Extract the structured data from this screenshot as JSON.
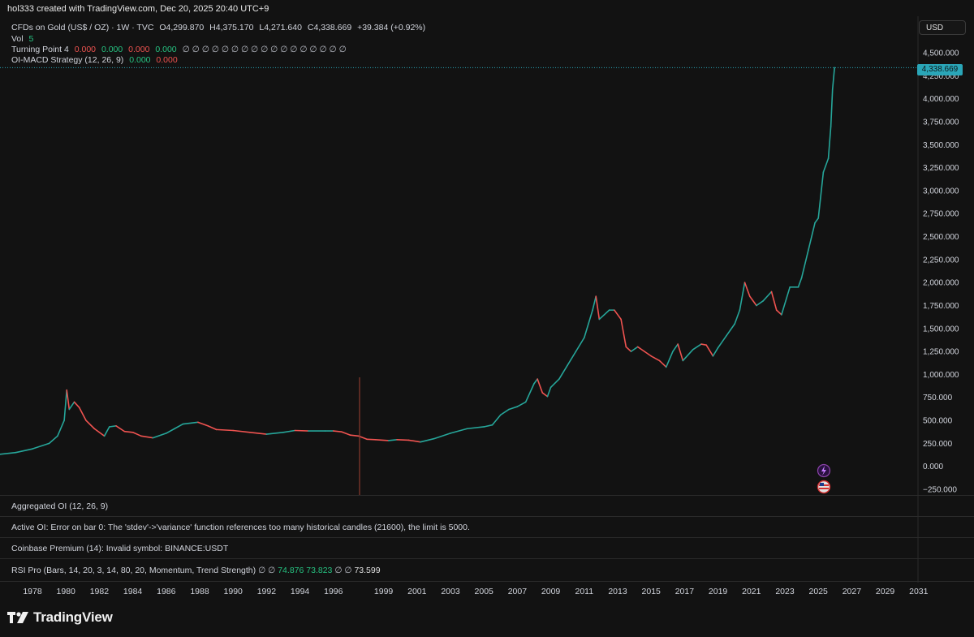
{
  "attribution": "hol333 created with TradingView.com, Dec 20, 2025 20:40 UTC+9",
  "legend": {
    "symbol": "CFDs on Gold (US$ / OZ) · 1W · TVC",
    "open": "O4,299.870",
    "high": "H4,375.170",
    "low": "L4,271.640",
    "close": "C4,338.669",
    "change": "+39.384 (+0.92%)",
    "vol_label": "Vol",
    "vol_value": "5",
    "tp_label": "Turning Point 4",
    "tp_values": [
      "0.000",
      "0.000",
      "0.000",
      "0.000"
    ],
    "null_glyphs": "∅ ∅ ∅ ∅ ∅ ∅ ∅ ∅ ∅ ∅ ∅ ∅ ∅ ∅ ∅ ∅ ∅",
    "oimacd_label": "OI-MACD Strategy (12, 26, 9)",
    "oimacd_values": [
      "0.000",
      "0.000"
    ]
  },
  "currency": "USD",
  "last_price_tag": "4,338.669",
  "panes": {
    "aggregated_oi": "Aggregated OI (12, 26, 9)",
    "active_oi": "Active OI: Error on bar 0: The 'stdev'->'variance' function references too many historical candles (21600), the limit is 5000.",
    "coinbase": "Coinbase Premium (14): Invalid symbol: BINANCE:USDT",
    "rsi_label": "RSI Pro (Bars, 14, 20, 3, 14, 80, 20, Momentum, Trend Strength)",
    "rsi_nulls_1": "∅ ∅",
    "rsi_v1": "74.876",
    "rsi_v2": "73.823",
    "rsi_nulls_2": "∅ ∅",
    "rsi_v3": "73.599"
  },
  "brand": "TradingView",
  "colors": {
    "up": "#26a69a",
    "down": "#ef5350",
    "accent": "#2aa6b8",
    "green": "#26c281"
  },
  "chart_data": {
    "type": "line",
    "title": "CFDs on Gold (US$ / OZ)",
    "xlabel": "",
    "ylabel": "",
    "x_range": [
      1976,
      2032
    ],
    "ylim": [
      -300,
      4600
    ],
    "y_ticks": [
      -250,
      0,
      250,
      500,
      750,
      1000,
      1250,
      1500,
      1750,
      2000,
      2250,
      2500,
      2750,
      3000,
      3250,
      3500,
      3750,
      4000,
      4250,
      4500
    ],
    "y_tick_labels": [
      "−250.000",
      "0.000",
      "250.000",
      "500.000",
      "750.000",
      "1,000.000",
      "1,250.000",
      "1,500.000",
      "1,750.000",
      "2,000.000",
      "2,250.000",
      "2,500.000",
      "2,750.000",
      "3,000.000",
      "3,250.000",
      "3,500.000",
      "3,750.000",
      "4,000.000",
      "4,250.000",
      "4,500.000"
    ],
    "x_ticks": [
      1978,
      1980,
      1982,
      1984,
      1986,
      1988,
      1990,
      1992,
      1994,
      1996,
      1999,
      2001,
      2003,
      2005,
      2007,
      2009,
      2011,
      2013,
      2015,
      2017,
      2019,
      2021,
      2023,
      2025,
      2027,
      2029,
      2031
    ],
    "x_tick_labels": [
      "1978",
      "1980",
      "1982",
      "1984",
      "1986",
      "1988",
      "1990",
      "1992",
      "1994",
      "1996",
      "1999",
      "2001",
      "2003",
      "2005",
      "2007",
      "2009",
      "2011",
      "2013",
      "2015",
      "2017",
      "2019",
      "2021",
      "2023",
      "2025",
      "2027",
      "2029",
      "2031"
    ],
    "grid": false,
    "series": [
      {
        "x": [
          1976.0,
          1977.0,
          1978.0,
          1979.0,
          1979.5,
          1979.9,
          1980.05,
          1980.2,
          1980.5,
          1980.8,
          1981.2,
          1981.7,
          1982.3,
          1982.6,
          1983.0,
          1983.5,
          1984.0,
          1984.5,
          1985.2,
          1986.0,
          1986.5,
          1987.0,
          1987.9,
          1988.5,
          1989.0,
          1990.0,
          1991.0,
          1992.0,
          1993.0,
          1993.7,
          1994.5,
          1995.5,
          1996.0,
          1996.5,
          1997.0,
          1997.5,
          1998.0,
          1998.5,
          1999.3,
          1999.8,
          2000.5,
          2001.2,
          2002.0,
          2003.0,
          2004.0,
          2005.0,
          2005.5,
          2006.0,
          2006.5,
          2007.0,
          2007.5,
          2008.0,
          2008.2,
          2008.5,
          2008.8,
          2009.0,
          2009.5,
          2010.0,
          2010.5,
          2011.0,
          2011.5,
          2011.7,
          2011.9,
          2012.2,
          2012.5,
          2012.8,
          2013.2,
          2013.5,
          2013.8,
          2014.2,
          2014.6,
          2015.0,
          2015.5,
          2015.9,
          2016.3,
          2016.6,
          2016.9,
          2017.5,
          2018.0,
          2018.3,
          2018.7,
          2019.0,
          2019.5,
          2020.0,
          2020.3,
          2020.6,
          2020.9,
          2021.3,
          2021.7,
          2022.2,
          2022.5,
          2022.8,
          2023.3,
          2023.8,
          2024.0,
          2024.4,
          2024.8,
          2025.0,
          2025.3,
          2025.6,
          2025.75,
          2025.85,
          2025.97
        ],
        "values": [
          130,
          150,
          190,
          250,
          330,
          500,
          830,
          620,
          700,
          640,
          500,
          410,
          330,
          430,
          440,
          380,
          370,
          330,
          310,
          360,
          410,
          460,
          480,
          440,
          400,
          390,
          370,
          350,
          370,
          390,
          385,
          385,
          385,
          375,
          340,
          330,
          295,
          290,
          280,
          290,
          285,
          265,
          300,
          360,
          410,
          430,
          450,
          560,
          620,
          650,
          700,
          900,
          950,
          800,
          760,
          860,
          950,
          1100,
          1250,
          1400,
          1700,
          1850,
          1600,
          1650,
          1700,
          1700,
          1600,
          1300,
          1250,
          1300,
          1250,
          1200,
          1150,
          1080,
          1250,
          1330,
          1150,
          1270,
          1330,
          1320,
          1200,
          1290,
          1420,
          1550,
          1700,
          2000,
          1850,
          1750,
          1800,
          1900,
          1700,
          1650,
          1950,
          1950,
          2050,
          2350,
          2650,
          2700,
          3200,
          3350,
          3700,
          4100,
          4338
        ]
      }
    ]
  }
}
